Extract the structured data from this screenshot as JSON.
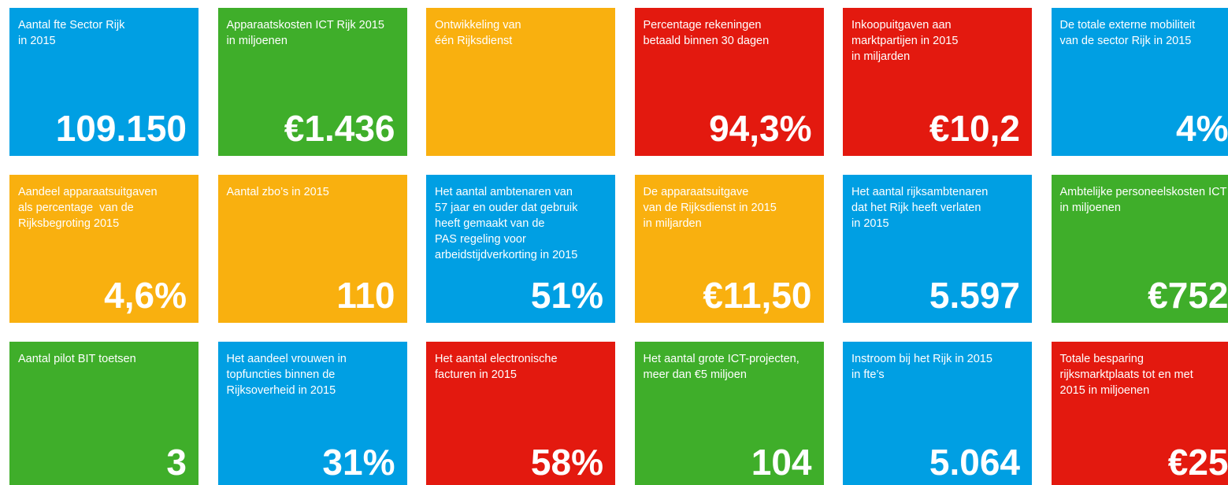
{
  "tiles": [
    {
      "color": "#009fe3",
      "lines": [
        "Aantal fte Sector Rijk",
        "in 2015"
      ],
      "value": "109.150"
    },
    {
      "color": "#3fae2a",
      "lines": [
        "Apparaatskosten ICT Rijk 2015",
        "in miljoenen"
      ],
      "value": "€1.436"
    },
    {
      "color": "#f9b00f",
      "lines": [
        "Ontwikkeling van",
        "één Rijksdienst"
      ]
    },
    {
      "color": "#e3190f",
      "lines": [
        "Percentage rekeningen",
        "betaald binnen 30 dagen"
      ],
      "value": "94,3%"
    },
    {
      "color": "#e3190f",
      "lines": [
        "Inkoopuitgaven aan",
        "marktpartijen in 2015",
        "in miljarden"
      ],
      "value": "€10,2"
    },
    {
      "color": "#009fe3",
      "lines": [
        "De totale externe mobiliteit",
        "van de sector Rijk in 2015"
      ],
      "value": "4%"
    },
    {
      "color": "#f9b00f",
      "lines": [
        "Aandeel apparaatsuitgaven",
        "als percentage  van de",
        "Rijksbegroting 2015"
      ],
      "value": "4,6%"
    },
    {
      "color": "#f9b00f",
      "lines": [
        "Aantal zbo’s in 2015"
      ],
      "value": "110"
    },
    {
      "color": "#009fe3",
      "lines": [
        "Het aantal ambtenaren van",
        "57 jaar en ouder dat gebruik",
        "heeft gemaakt van de",
        "PAS regeling voor",
        "arbeidstijdverkorting in 2015"
      ],
      "value": "51%"
    },
    {
      "color": "#f9b00f",
      "lines": [
        "De apparaatsuitgave",
        "van de Rijksdienst in 2015",
        "in miljarden"
      ],
      "value": "€11,50"
    },
    {
      "color": "#009fe3",
      "lines": [
        "Het aantal rijksambtenaren",
        "dat het Rijk heeft verlaten",
        "in 2015"
      ],
      "value": "5.597"
    },
    {
      "color": "#3fae2a",
      "lines": [
        "Ambtelijke personeelskosten ICT",
        "in miljoenen"
      ],
      "value": "€752"
    },
    {
      "color": "#3fae2a",
      "lines": [
        "Aantal pilot BIT toetsen"
      ],
      "value": "3"
    },
    {
      "color": "#009fe3",
      "lines": [
        "Het aandeel vrouwen in",
        "topfuncties binnen de",
        "Rijksoverheid in 2015"
      ],
      "value": "31%"
    },
    {
      "color": "#e3190f",
      "lines": [
        "Het aantal electronische",
        "facturen in 2015"
      ],
      "value": "58%"
    },
    {
      "color": "#3fae2a",
      "lines": [
        "Het aantal grote ICT-projecten,",
        "meer dan €5 miljoen"
      ],
      "value": "104"
    },
    {
      "color": "#009fe3",
      "lines": [
        "Instroom bij het Rijk in 2015",
        "in fte’s"
      ],
      "value": "5.064"
    },
    {
      "color": "#e3190f",
      "lines": [
        "Totale besparing",
        "rijksmarktplaats tot en met",
        "2015 in miljoenen"
      ],
      "value": "€25"
    }
  ]
}
